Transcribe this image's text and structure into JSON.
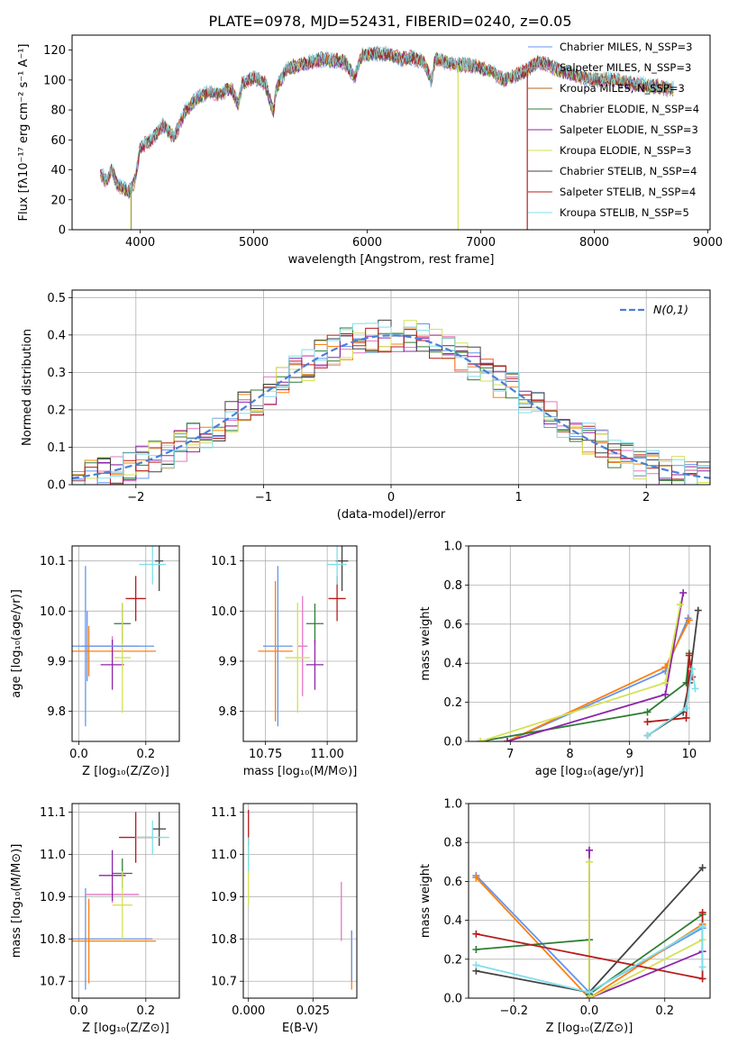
{
  "figure_title": "PLATE=0978, MJD=52431, FIBERID=0240, z=0.05",
  "chart_data": [
    {
      "id": "spectrum",
      "type": "line",
      "title": "PLATE=0978, MJD=52431, FIBERID=0240, z=0.05",
      "xlabel": "wavelength [Angstrom, rest frame]",
      "ylabel": "Flux [fλ10⁻¹⁷ erg cm⁻² s⁻¹ A⁻¹]",
      "xlim": [
        3400,
        9020
      ],
      "ylim": [
        0,
        130
      ],
      "xticks": [
        4000,
        5000,
        6000,
        7000,
        8000,
        9000
      ],
      "yticks": [
        0,
        20,
        40,
        60,
        80,
        100,
        120
      ],
      "legend_position": "top-right",
      "series": [
        {
          "name": "Chabrier MILES, N_SSP=3",
          "color": "#6495ed"
        },
        {
          "name": "Salpeter MILES, N_SSP=3",
          "color": "#e377c2"
        },
        {
          "name": "Kroupa MILES, N_SSP=3",
          "color": "#b5651d"
        },
        {
          "name": "Chabrier ELODIE, N_SSP=4",
          "color": "#2e7d32"
        },
        {
          "name": "Salpeter ELODIE, N_SSP=3",
          "color": "#8e24aa"
        },
        {
          "name": "Kroupa ELODIE, N_SSP=3",
          "color": "#d4e157"
        },
        {
          "name": "Chabrier STELIB, N_SSP=4",
          "color": "#424242"
        },
        {
          "name": "Salpeter STELIB, N_SSP=4",
          "color": "#b71c1c"
        },
        {
          "name": "Kroupa STELIB, N_SSP=5",
          "color": "#80deea"
        }
      ],
      "x": [
        3650,
        3700,
        3750,
        3800,
        3850,
        3900,
        3950,
        4000,
        4100,
        4200,
        4300,
        4400,
        4500,
        4600,
        4700,
        4800,
        4861,
        4900,
        5000,
        5100,
        5175,
        5200,
        5300,
        5400,
        5500,
        5600,
        5700,
        5800,
        5890,
        5950,
        6000,
        6100,
        6200,
        6300,
        6400,
        6500,
        6563,
        6600,
        6700,
        6800,
        6900,
        7000,
        7100,
        7200,
        7300,
        7400,
        7500,
        7600,
        7700,
        7800,
        7900,
        8000,
        8100,
        8200,
        8300,
        8400,
        8500,
        8600,
        8700
      ],
      "y": [
        38,
        32,
        40,
        30,
        28,
        25,
        32,
        55,
        60,
        70,
        62,
        80,
        88,
        92,
        90,
        95,
        84,
        98,
        102,
        98,
        78,
        95,
        108,
        110,
        112,
        114,
        113,
        112,
        102,
        116,
        117,
        118,
        117,
        114,
        115,
        112,
        100,
        114,
        112,
        110,
        110,
        108,
        106,
        100,
        103,
        106,
        112,
        110,
        106,
        104,
        102,
        100,
        101,
        100,
        98,
        97,
        96,
        95,
        94
      ],
      "dropouts": [
        {
          "x": 3920,
          "color": "#9e9d24"
        },
        {
          "x": 6800,
          "color": "#d4e157"
        },
        {
          "x": 7410,
          "color": "#b71c1c"
        }
      ]
    },
    {
      "id": "residuals",
      "type": "line",
      "xlabel": "(data-model)/error",
      "ylabel": "Normed distribution",
      "xlim": [
        -2.5,
        2.5
      ],
      "ylim": [
        0,
        0.52
      ],
      "xticks": [
        -2,
        -1,
        0,
        1,
        2
      ],
      "yticks": [
        0.0,
        0.1,
        0.2,
        0.3,
        0.4,
        0.5
      ],
      "grid": true,
      "legend_position": "top-right",
      "reference_series": {
        "name": "N(0,1)",
        "color": "#4a7fd6",
        "style": "dashed"
      },
      "bin_width": 0.1,
      "bin_start": -2.5,
      "histogram_colors": [
        "#6495ed",
        "#e377c2",
        "#ff7f0e",
        "#2e7d32",
        "#8e24aa",
        "#d4e157",
        "#424242",
        "#b71c1c",
        "#80deea"
      ]
    },
    {
      "id": "age-vs-Z",
      "type": "scatter",
      "xlabel": "Z [log₁₀(Z/Z⊙)]",
      "ylabel": "age  [log₁₀(age/yr)]",
      "xlim": [
        -0.02,
        0.3
      ],
      "ylim": [
        9.74,
        10.13
      ],
      "xticks": [
        0.0,
        0.2
      ],
      "yticks": [
        9.8,
        9.9,
        10.0,
        10.1
      ],
      "grid": true,
      "points": [
        {
          "x": 0.02,
          "y": 9.93,
          "xerr": 0.01,
          "yerr": 0.16,
          "color": "#6495ed"
        },
        {
          "x": 0.1,
          "y": 9.93,
          "xerr": 0.08,
          "yerr": 0.02,
          "color": "#e377c2"
        },
        {
          "x": 0.03,
          "y": 9.92,
          "xerr": 0.2,
          "yerr": 0.05,
          "color": "#ff7f0e"
        },
        {
          "x": 0.13,
          "y": 9.975,
          "xerr": 0.025,
          "yerr": 0.04,
          "color": "#2e7d32"
        },
        {
          "x": 0.1,
          "y": 9.893,
          "xerr": 0.035,
          "yerr": 0.05,
          "color": "#8e24aa"
        },
        {
          "x": 0.13,
          "y": 9.907,
          "xerr": 0.025,
          "yerr": 0.11,
          "color": "#d4e157"
        },
        {
          "x": 0.24,
          "y": 10.1,
          "xerr": 0.012,
          "yerr": 0.06,
          "color": "#424242"
        },
        {
          "x": 0.17,
          "y": 10.025,
          "xerr": 0.03,
          "yerr": 0.045,
          "color": "#b71c1c"
        },
        {
          "x": 0.22,
          "y": 10.093,
          "xerr": 0.04,
          "yerr": 0.04,
          "color": "#80deea"
        },
        {
          "x": 0.025,
          "y": 9.93,
          "xerr": 0.2,
          "yerr": 0.07,
          "color": "#6495ed"
        }
      ]
    },
    {
      "id": "age-vs-mass",
      "type": "scatter",
      "xlabel": "mass [log₁₀(M/M⊙)]",
      "ylabel": "",
      "xlim": [
        10.66,
        11.12
      ],
      "ylim": [
        9.74,
        10.13
      ],
      "xticks": [
        10.75,
        11.0
      ],
      "yticks": [
        9.8,
        9.9,
        10.0,
        10.1
      ],
      "grid": true,
      "points": [
        {
          "x": 10.8,
          "y": 9.93,
          "xerr": 0.06,
          "yerr": 0.16,
          "color": "#6495ed"
        },
        {
          "x": 10.9,
          "y": 9.93,
          "xerr": 0.02,
          "yerr": 0.1,
          "color": "#e377c2"
        },
        {
          "x": 10.79,
          "y": 9.92,
          "xerr": 0.07,
          "yerr": 0.14,
          "color": "#ff7f0e"
        },
        {
          "x": 10.95,
          "y": 9.975,
          "xerr": 0.035,
          "yerr": 0.04,
          "color": "#2e7d32"
        },
        {
          "x": 10.95,
          "y": 9.893,
          "xerr": 0.035,
          "yerr": 0.05,
          "color": "#8e24aa"
        },
        {
          "x": 10.88,
          "y": 9.907,
          "xerr": 0.05,
          "yerr": 0.11,
          "color": "#d4e157"
        },
        {
          "x": 11.06,
          "y": 10.1,
          "xerr": 0.025,
          "yerr": 0.06,
          "color": "#424242"
        },
        {
          "x": 11.04,
          "y": 10.025,
          "xerr": 0.035,
          "yerr": 0.045,
          "color": "#b71c1c"
        },
        {
          "x": 11.04,
          "y": 10.093,
          "xerr": 0.04,
          "yerr": 0.04,
          "color": "#80deea"
        }
      ]
    },
    {
      "id": "massweight-vs-age",
      "type": "line",
      "xlabel": "age  [log₁₀(age/yr)]",
      "ylabel": "mass weight",
      "xlim": [
        6.3,
        10.35
      ],
      "ylim": [
        0.0,
        1.0
      ],
      "xticks": [
        7,
        8,
        9,
        10
      ],
      "yticks": [
        0.0,
        0.2,
        0.4,
        0.6,
        0.8,
        1.0
      ],
      "grid": true,
      "series": [
        {
          "color": "#6495ed",
          "x": [
            6.95,
            9.6,
            9.98
          ],
          "y": [
            0.0,
            0.36,
            0.63
          ]
        },
        {
          "color": "#ff7f0e",
          "x": [
            6.95,
            9.6,
            10.0
          ],
          "y": [
            0.0,
            0.38,
            0.62
          ]
        },
        {
          "color": "#2e7d32",
          "x": [
            6.5,
            9.3,
            9.95,
            10.0
          ],
          "y": [
            0.0,
            0.15,
            0.3,
            0.45
          ]
        },
        {
          "color": "#8e24aa",
          "x": [
            6.95,
            9.6,
            9.9
          ],
          "y": [
            0.0,
            0.24,
            0.76
          ]
        },
        {
          "color": "#d4e157",
          "x": [
            6.5,
            9.6,
            9.85
          ],
          "y": [
            0.0,
            0.3,
            0.7
          ]
        },
        {
          "color": "#424242",
          "x": [
            9.3,
            9.9,
            10.0,
            10.15
          ],
          "y": [
            0.03,
            0.15,
            0.3,
            0.67
          ]
        },
        {
          "color": "#b71c1c",
          "x": [
            9.3,
            9.95,
            10.0,
            10.05
          ],
          "y": [
            0.1,
            0.12,
            0.44,
            0.33
          ]
        },
        {
          "color": "#80deea",
          "x": [
            9.3,
            9.95,
            10.05,
            10.1
          ],
          "y": [
            0.03,
            0.17,
            0.37,
            0.27
          ]
        }
      ]
    },
    {
      "id": "mass-vs-Z",
      "type": "scatter",
      "xlabel": "Z [log₁₀(Z/Z⊙)]",
      "ylabel": "mass [log₁₀(M/M⊙)]",
      "xlim": [
        -0.02,
        0.3
      ],
      "ylim": [
        10.66,
        11.12
      ],
      "xticks": [
        0.0,
        0.2
      ],
      "yticks": [
        10.7,
        10.8,
        10.9,
        11.0,
        11.1
      ],
      "grid": true,
      "points": [
        {
          "x": 0.02,
          "y": 10.8,
          "xerr": 0.2,
          "yerr": 0.12,
          "color": "#6495ed"
        },
        {
          "x": 0.1,
          "y": 10.905,
          "xerr": 0.08,
          "yerr": 0.02,
          "color": "#e377c2"
        },
        {
          "x": 0.03,
          "y": 10.795,
          "xerr": 0.2,
          "yerr": 0.1,
          "color": "#ff7f0e"
        },
        {
          "x": 0.13,
          "y": 10.955,
          "xerr": 0.03,
          "yerr": 0.035,
          "color": "#2e7d32"
        },
        {
          "x": 0.1,
          "y": 10.95,
          "xerr": 0.04,
          "yerr": 0.06,
          "color": "#8e24aa"
        },
        {
          "x": 0.13,
          "y": 10.88,
          "xerr": 0.03,
          "yerr": 0.08,
          "color": "#d4e157"
        },
        {
          "x": 0.24,
          "y": 11.06,
          "xerr": 0.02,
          "yerr": 0.04,
          "color": "#424242"
        },
        {
          "x": 0.17,
          "y": 11.04,
          "xerr": 0.05,
          "yerr": 0.06,
          "color": "#b71c1c"
        },
        {
          "x": 0.22,
          "y": 11.04,
          "xerr": 0.05,
          "yerr": 0.04,
          "color": "#80deea"
        }
      ]
    },
    {
      "id": "mass-vs-EBV",
      "type": "scatter",
      "xlabel": "E(B-V)",
      "ylabel": "",
      "xlim": [
        -0.002,
        0.042
      ],
      "ylim": [
        10.66,
        11.12
      ],
      "xticks": [
        0.0,
        0.025
      ],
      "xtick_labels": [
        "0.000",
        "0.025"
      ],
      "yticks": [
        10.7,
        10.8,
        10.9,
        11.0,
        11.1
      ],
      "grid": true,
      "points": [
        {
          "x": 0.0,
          "y": 11.04,
          "xerr": 0,
          "yerr": 0.065,
          "color": "#b71c1c"
        },
        {
          "x": 0.0,
          "y": 10.95,
          "xerr": 0,
          "yerr": 0.07,
          "color": "#d4e157"
        },
        {
          "x": 0.0,
          "y": 11.0,
          "xerr": 0,
          "yerr": 0.04,
          "color": "#80deea"
        },
        {
          "x": 0.036,
          "y": 10.865,
          "xerr": 0,
          "yerr": 0.07,
          "color": "#e377c2"
        },
        {
          "x": 0.04,
          "y": 10.75,
          "xerr": 0,
          "yerr": 0.07,
          "color": "#ff7f0e"
        },
        {
          "x": 0.04,
          "y": 10.76,
          "xerr": 0,
          "yerr": 0.06,
          "color": "#6495ed"
        }
      ]
    },
    {
      "id": "massweight-vs-Z",
      "type": "line",
      "xlabel": "Z [log₁₀(Z/Z⊙)]",
      "ylabel": "mass weight",
      "xlim": [
        -0.32,
        0.32
      ],
      "ylim": [
        0.0,
        1.0
      ],
      "xticks": [
        -0.2,
        0.0,
        0.2
      ],
      "yticks": [
        0.0,
        0.2,
        0.4,
        0.6,
        0.8,
        1.0
      ],
      "grid": true,
      "series": [
        {
          "color": "#6495ed",
          "x": [
            -0.3,
            0.0,
            0.3
          ],
          "y": [
            0.63,
            0.03,
            0.36
          ]
        },
        {
          "color": "#ff7f0e",
          "x": [
            -0.3,
            0.0,
            0.3
          ],
          "y": [
            0.62,
            0.0,
            0.38
          ]
        },
        {
          "color": "#2e7d32",
          "x": [
            -0.3,
            0.0,
            0.0,
            0.3
          ],
          "y": [
            0.25,
            0.3,
            0.02,
            0.43
          ]
        },
        {
          "color": "#8e24aa",
          "x": [
            0.0,
            0.0,
            0.3
          ],
          "y": [
            0.76,
            0.0,
            0.24
          ]
        },
        {
          "color": "#d4e157",
          "x": [
            0.0,
            0.0,
            0.3
          ],
          "y": [
            0.7,
            0.0,
            0.3
          ]
        },
        {
          "color": "#424242",
          "x": [
            -0.3,
            0.0,
            0.3
          ],
          "y": [
            0.14,
            0.03,
            0.67
          ]
        },
        {
          "color": "#b71c1c",
          "x": [
            -0.3,
            0.3,
            0.3
          ],
          "y": [
            0.33,
            0.1,
            0.44
          ]
        },
        {
          "color": "#80deea",
          "x": [
            -0.3,
            0.0,
            0.3,
            0.3
          ],
          "y": [
            0.17,
            0.03,
            0.37,
            0.16
          ]
        }
      ]
    }
  ]
}
